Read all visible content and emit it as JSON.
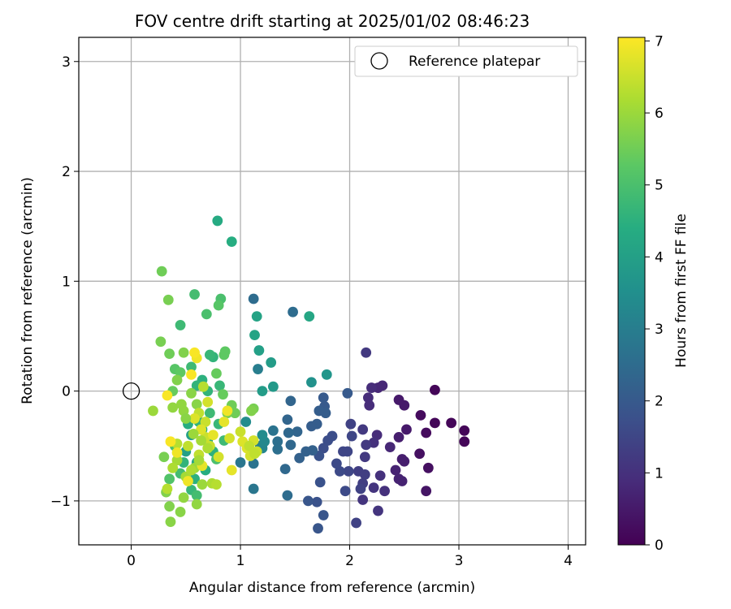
{
  "chart_data": {
    "type": "scatter",
    "title": "FOV centre drift starting at 2025/01/02 08:46:23",
    "xlabel": "Angular distance from reference (arcmin)",
    "ylabel": "Rotation from reference (arcmin)",
    "xlim": [
      -0.48,
      4.16
    ],
    "ylim": [
      -1.4,
      3.22
    ],
    "xticks": [
      0,
      1,
      2,
      3,
      4
    ],
    "xtick_labels": [
      "0",
      "1",
      "2",
      "3",
      "4"
    ],
    "yticks": [
      -1,
      0,
      1,
      2,
      3
    ],
    "ytick_labels": [
      "−1",
      "0",
      "1",
      "2",
      "3"
    ],
    "grid": true,
    "legend": {
      "position": "top-right",
      "entries": [
        {
          "label": "Reference platepar",
          "marker": "open-circle",
          "x": 0,
          "y": 0
        }
      ]
    },
    "colorbar": {
      "label": "Hours from first FF file",
      "range": [
        0,
        7.05
      ],
      "ticks": [
        0,
        1,
        2,
        3,
        4,
        5,
        6,
        7
      ],
      "tick_labels": [
        "0",
        "1",
        "2",
        "3",
        "4",
        "5",
        "6",
        "7"
      ],
      "colormap": "viridis"
    },
    "points": [
      {
        "x": 2.78,
        "y": 0.01,
        "c": 0.1
      },
      {
        "x": 2.65,
        "y": -0.22,
        "c": 0.2
      },
      {
        "x": 2.78,
        "y": -0.29,
        "c": 0.1
      },
      {
        "x": 2.93,
        "y": -0.29,
        "c": 0.1
      },
      {
        "x": 3.05,
        "y": -0.36,
        "c": 0.1
      },
      {
        "x": 3.05,
        "y": -0.46,
        "c": 0.1
      },
      {
        "x": 2.7,
        "y": -0.38,
        "c": 0.2
      },
      {
        "x": 2.64,
        "y": -0.57,
        "c": 0.3
      },
      {
        "x": 2.72,
        "y": -0.7,
        "c": 0.3
      },
      {
        "x": 2.7,
        "y": -0.91,
        "c": 0.4
      },
      {
        "x": 2.5,
        "y": -0.13,
        "c": 0.5
      },
      {
        "x": 2.45,
        "y": -0.08,
        "c": 0.5
      },
      {
        "x": 2.52,
        "y": -0.35,
        "c": 0.5
      },
      {
        "x": 2.45,
        "y": -0.42,
        "c": 0.6
      },
      {
        "x": 2.48,
        "y": -0.62,
        "c": 0.6
      },
      {
        "x": 2.5,
        "y": -0.64,
        "c": 0.6
      },
      {
        "x": 2.42,
        "y": -0.72,
        "c": 0.7
      },
      {
        "x": 2.45,
        "y": -0.8,
        "c": 0.7
      },
      {
        "x": 2.48,
        "y": -0.82,
        "c": 0.7
      },
      {
        "x": 2.37,
        "y": -0.51,
        "c": 0.8
      },
      {
        "x": 2.3,
        "y": 0.05,
        "c": 0.8
      },
      {
        "x": 2.26,
        "y": 0.03,
        "c": 0.8
      },
      {
        "x": 2.2,
        "y": 0.03,
        "c": 0.9
      },
      {
        "x": 2.17,
        "y": -0.06,
        "c": 0.9
      },
      {
        "x": 2.18,
        "y": -0.13,
        "c": 0.9
      },
      {
        "x": 2.25,
        "y": -0.4,
        "c": 0.9
      },
      {
        "x": 2.22,
        "y": -0.47,
        "c": 1.0
      },
      {
        "x": 2.28,
        "y": -0.77,
        "c": 1.0
      },
      {
        "x": 2.32,
        "y": -0.91,
        "c": 1.0
      },
      {
        "x": 2.22,
        "y": -0.88,
        "c": 1.1
      },
      {
        "x": 2.26,
        "y": -1.09,
        "c": 1.1
      },
      {
        "x": 2.12,
        "y": -0.99,
        "c": 1.1
      },
      {
        "x": 2.15,
        "y": 0.35,
        "c": 1.2
      },
      {
        "x": 2.12,
        "y": -0.35,
        "c": 1.2
      },
      {
        "x": 2.15,
        "y": -0.49,
        "c": 1.2
      },
      {
        "x": 2.14,
        "y": -0.6,
        "c": 1.2
      },
      {
        "x": 2.08,
        "y": -0.73,
        "c": 1.3
      },
      {
        "x": 2.14,
        "y": -0.76,
        "c": 1.3
      },
      {
        "x": 2.12,
        "y": -0.84,
        "c": 1.3
      },
      {
        "x": 2.1,
        "y": -0.89,
        "c": 1.4
      },
      {
        "x": 2.06,
        "y": -1.2,
        "c": 1.4
      },
      {
        "x": 2.01,
        "y": -0.3,
        "c": 1.4
      },
      {
        "x": 2.02,
        "y": -0.41,
        "c": 1.5
      },
      {
        "x": 1.98,
        "y": -0.55,
        "c": 1.5
      },
      {
        "x": 1.94,
        "y": -0.55,
        "c": 1.5
      },
      {
        "x": 1.99,
        "y": -0.73,
        "c": 1.5
      },
      {
        "x": 1.96,
        "y": -0.91,
        "c": 1.6
      },
      {
        "x": 1.91,
        "y": -0.73,
        "c": 1.6
      },
      {
        "x": 1.88,
        "y": -0.66,
        "c": 1.6
      },
      {
        "x": 1.84,
        "y": -0.41,
        "c": 1.7
      },
      {
        "x": 1.8,
        "y": -0.45,
        "c": 1.7
      },
      {
        "x": 1.76,
        "y": -0.52,
        "c": 1.7
      },
      {
        "x": 1.72,
        "y": -0.59,
        "c": 1.8
      },
      {
        "x": 1.73,
        "y": -0.83,
        "c": 1.8
      },
      {
        "x": 1.7,
        "y": -1.01,
        "c": 1.8
      },
      {
        "x": 1.76,
        "y": -1.13,
        "c": 1.9
      },
      {
        "x": 1.71,
        "y": -1.25,
        "c": 1.9
      },
      {
        "x": 1.62,
        "y": -1.0,
        "c": 1.9
      },
      {
        "x": 1.98,
        "y": -0.02,
        "c": 2.0
      },
      {
        "x": 1.76,
        "y": -0.06,
        "c": 2.0
      },
      {
        "x": 1.77,
        "y": -0.14,
        "c": 2.0
      },
      {
        "x": 1.78,
        "y": -0.2,
        "c": 2.1
      },
      {
        "x": 1.72,
        "y": -0.18,
        "c": 2.1
      },
      {
        "x": 1.7,
        "y": -0.3,
        "c": 2.1
      },
      {
        "x": 1.65,
        "y": -0.32,
        "c": 2.1
      },
      {
        "x": 1.66,
        "y": -0.54,
        "c": 2.2
      },
      {
        "x": 1.6,
        "y": -0.55,
        "c": 2.2
      },
      {
        "x": 1.54,
        "y": -0.61,
        "c": 2.2
      },
      {
        "x": 1.52,
        "y": -0.37,
        "c": 2.3
      },
      {
        "x": 1.46,
        "y": -0.09,
        "c": 2.3
      },
      {
        "x": 1.43,
        "y": -0.26,
        "c": 2.3
      },
      {
        "x": 1.44,
        "y": -0.38,
        "c": 2.4
      },
      {
        "x": 1.46,
        "y": -0.49,
        "c": 2.4
      },
      {
        "x": 1.41,
        "y": -0.71,
        "c": 2.4
      },
      {
        "x": 1.43,
        "y": -0.95,
        "c": 2.5
      },
      {
        "x": 1.48,
        "y": 0.72,
        "c": 2.5
      },
      {
        "x": 1.12,
        "y": 0.84,
        "c": 2.5
      },
      {
        "x": 1.34,
        "y": -0.46,
        "c": 2.6
      },
      {
        "x": 1.34,
        "y": -0.53,
        "c": 2.6
      },
      {
        "x": 1.3,
        "y": -0.36,
        "c": 2.7
      },
      {
        "x": 1.12,
        "y": -0.66,
        "c": 2.7
      },
      {
        "x": 1.0,
        "y": -0.65,
        "c": 2.8
      },
      {
        "x": 1.12,
        "y": -0.89,
        "c": 2.8
      },
      {
        "x": 1.18,
        "y": -0.5,
        "c": 3.0
      },
      {
        "x": 1.16,
        "y": 0.2,
        "c": 3.0
      },
      {
        "x": 1.2,
        "y": -0.52,
        "c": 3.2
      },
      {
        "x": 1.22,
        "y": -0.46,
        "c": 3.3
      },
      {
        "x": 1.05,
        "y": -0.28,
        "c": 3.4
      },
      {
        "x": 1.2,
        "y": -0.4,
        "c": 3.4
      },
      {
        "x": 1.65,
        "y": 0.08,
        "c": 3.6
      },
      {
        "x": 1.79,
        "y": 0.15,
        "c": 3.7
      },
      {
        "x": 1.3,
        "y": 0.04,
        "c": 3.8
      },
      {
        "x": 1.2,
        "y": 0.0,
        "c": 3.9
      },
      {
        "x": 1.28,
        "y": 0.26,
        "c": 3.9
      },
      {
        "x": 1.17,
        "y": 0.37,
        "c": 4.0
      },
      {
        "x": 1.13,
        "y": 0.51,
        "c": 4.1
      },
      {
        "x": 1.15,
        "y": 0.68,
        "c": 4.1
      },
      {
        "x": 1.63,
        "y": 0.68,
        "c": 4.2
      },
      {
        "x": 0.79,
        "y": 1.55,
        "c": 4.3
      },
      {
        "x": 0.92,
        "y": 1.36,
        "c": 4.4
      },
      {
        "x": 0.55,
        "y": -0.4,
        "c": 4.0
      },
      {
        "x": 0.5,
        "y": -0.55,
        "c": 4.0
      },
      {
        "x": 0.6,
        "y": -0.65,
        "c": 4.2
      },
      {
        "x": 0.65,
        "y": -0.35,
        "c": 4.3
      },
      {
        "x": 0.7,
        "y": -0.45,
        "c": 4.3
      },
      {
        "x": 0.52,
        "y": -0.3,
        "c": 4.4
      },
      {
        "x": 0.68,
        "y": -0.72,
        "c": 4.4
      },
      {
        "x": 0.58,
        "y": -0.8,
        "c": 4.5
      },
      {
        "x": 0.75,
        "y": -0.55,
        "c": 4.5
      },
      {
        "x": 0.62,
        "y": -0.28,
        "c": 4.6
      },
      {
        "x": 0.48,
        "y": -0.65,
        "c": 4.6
      },
      {
        "x": 0.55,
        "y": -0.9,
        "c": 4.7
      },
      {
        "x": 0.8,
        "y": -0.3,
        "c": 4.7
      },
      {
        "x": 0.72,
        "y": -0.2,
        "c": 4.8
      },
      {
        "x": 0.85,
        "y": -0.45,
        "c": 4.8
      },
      {
        "x": 0.45,
        "y": -0.75,
        "c": 4.9
      },
      {
        "x": 0.6,
        "y": -0.95,
        "c": 4.9
      },
      {
        "x": 0.4,
        "y": -0.5,
        "c": 5.0
      },
      {
        "x": 0.78,
        "y": -0.62,
        "c": 5.0
      },
      {
        "x": 0.35,
        "y": -0.8,
        "c": 5.1
      },
      {
        "x": 0.65,
        "y": 0.1,
        "c": 4.5
      },
      {
        "x": 0.7,
        "y": 0.0,
        "c": 4.6
      },
      {
        "x": 0.6,
        "y": 0.05,
        "c": 4.6
      },
      {
        "x": 0.75,
        "y": 0.31,
        "c": 4.6
      },
      {
        "x": 0.72,
        "y": 0.33,
        "c": 4.7
      },
      {
        "x": 0.81,
        "y": 0.05,
        "c": 4.7
      },
      {
        "x": 0.55,
        "y": 0.22,
        "c": 4.8
      },
      {
        "x": 0.45,
        "y": 0.6,
        "c": 4.8
      },
      {
        "x": 0.58,
        "y": 0.88,
        "c": 4.9
      },
      {
        "x": 0.69,
        "y": 0.7,
        "c": 5.0
      },
      {
        "x": 0.82,
        "y": 0.84,
        "c": 5.0
      },
      {
        "x": 0.8,
        "y": 0.78,
        "c": 5.2
      },
      {
        "x": 0.85,
        "y": 0.33,
        "c": 5.3
      },
      {
        "x": 0.86,
        "y": 0.36,
        "c": 5.3
      },
      {
        "x": 0.78,
        "y": 0.16,
        "c": 5.4
      },
      {
        "x": 0.84,
        "y": -0.03,
        "c": 5.4
      },
      {
        "x": 0.92,
        "y": -0.13,
        "c": 5.5
      },
      {
        "x": 0.95,
        "y": -0.2,
        "c": 5.5
      },
      {
        "x": 0.88,
        "y": -0.2,
        "c": 5.6
      },
      {
        "x": 1.12,
        "y": -0.16,
        "c": 5.6
      },
      {
        "x": 1.1,
        "y": -0.18,
        "c": 5.7
      },
      {
        "x": 0.4,
        "y": 0.2,
        "c": 5.2
      },
      {
        "x": 0.45,
        "y": 0.17,
        "c": 5.3
      },
      {
        "x": 0.38,
        "y": 0.0,
        "c": 5.4
      },
      {
        "x": 0.35,
        "y": 0.34,
        "c": 5.5
      },
      {
        "x": 0.28,
        "y": 1.09,
        "c": 5.5
      },
      {
        "x": 0.34,
        "y": 0.83,
        "c": 5.6
      },
      {
        "x": 0.27,
        "y": 0.45,
        "c": 5.6
      },
      {
        "x": 0.48,
        "y": 0.35,
        "c": 5.7
      },
      {
        "x": 0.42,
        "y": 0.1,
        "c": 5.7
      },
      {
        "x": 0.55,
        "y": -0.02,
        "c": 5.8
      },
      {
        "x": 0.6,
        "y": -0.12,
        "c": 5.8
      },
      {
        "x": 0.48,
        "y": -0.18,
        "c": 5.9
      },
      {
        "x": 0.38,
        "y": -0.15,
        "c": 5.9
      },
      {
        "x": 0.2,
        "y": -0.18,
        "c": 6.0
      },
      {
        "x": 0.3,
        "y": -0.6,
        "c": 5.6
      },
      {
        "x": 0.32,
        "y": -0.92,
        "c": 5.7
      },
      {
        "x": 0.35,
        "y": -1.05,
        "c": 5.7
      },
      {
        "x": 0.36,
        "y": -1.19,
        "c": 5.8
      },
      {
        "x": 0.45,
        "y": -1.1,
        "c": 5.8
      },
      {
        "x": 0.48,
        "y": -0.97,
        "c": 5.9
      },
      {
        "x": 0.6,
        "y": -1.03,
        "c": 5.9
      },
      {
        "x": 0.65,
        "y": -0.85,
        "c": 6.0
      },
      {
        "x": 0.58,
        "y": -0.7,
        "c": 6.0
      },
      {
        "x": 0.42,
        "y": -0.63,
        "c": 6.1
      },
      {
        "x": 0.5,
        "y": -0.78,
        "c": 6.1
      },
      {
        "x": 0.55,
        "y": -0.72,
        "c": 6.2
      },
      {
        "x": 0.38,
        "y": -0.7,
        "c": 6.2
      },
      {
        "x": 0.33,
        "y": -0.89,
        "c": 6.3
      },
      {
        "x": 0.42,
        "y": -0.48,
        "c": 6.3
      },
      {
        "x": 0.52,
        "y": -0.5,
        "c": 6.4
      },
      {
        "x": 0.62,
        "y": -0.58,
        "c": 6.4
      },
      {
        "x": 0.68,
        "y": -0.42,
        "c": 6.5
      },
      {
        "x": 0.72,
        "y": -0.5,
        "c": 6.5
      },
      {
        "x": 0.8,
        "y": -0.6,
        "c": 6.6
      },
      {
        "x": 0.9,
        "y": -0.43,
        "c": 6.6
      },
      {
        "x": 0.74,
        "y": -0.84,
        "c": 6.2
      },
      {
        "x": 0.78,
        "y": -0.85,
        "c": 6.3
      },
      {
        "x": 0.62,
        "y": -0.2,
        "c": 6.4
      },
      {
        "x": 0.68,
        "y": -0.28,
        "c": 6.5
      },
      {
        "x": 0.7,
        "y": -0.1,
        "c": 6.6
      },
      {
        "x": 0.58,
        "y": -0.25,
        "c": 6.7
      },
      {
        "x": 0.64,
        "y": -0.35,
        "c": 6.7
      },
      {
        "x": 0.75,
        "y": -0.4,
        "c": 6.8
      },
      {
        "x": 0.85,
        "y": -0.28,
        "c": 6.8
      },
      {
        "x": 0.88,
        "y": -0.18,
        "c": 6.9
      },
      {
        "x": 0.6,
        "y": 0.3,
        "c": 6.9
      },
      {
        "x": 0.58,
        "y": 0.35,
        "c": 7.0
      },
      {
        "x": 0.55,
        "y": 0.15,
        "c": 7.0
      },
      {
        "x": 0.33,
        "y": -0.04,
        "c": 7.0
      },
      {
        "x": 0.36,
        "y": -0.46,
        "c": 7.0
      },
      {
        "x": 0.42,
        "y": -0.56,
        "c": 6.9
      },
      {
        "x": 0.52,
        "y": -0.82,
        "c": 6.9
      },
      {
        "x": 0.65,
        "y": -0.68,
        "c": 6.8
      },
      {
        "x": 0.92,
        "y": -0.72,
        "c": 6.8
      },
      {
        "x": 1.02,
        "y": -0.46,
        "c": 6.7
      },
      {
        "x": 1.06,
        "y": -0.52,
        "c": 6.7
      },
      {
        "x": 1.09,
        "y": -0.59,
        "c": 6.6
      },
      {
        "x": 1.12,
        "y": -0.45,
        "c": 6.6
      },
      {
        "x": 1.15,
        "y": -0.55,
        "c": 6.5
      },
      {
        "x": 1.0,
        "y": -0.37,
        "c": 6.5
      },
      {
        "x": 1.08,
        "y": -0.5,
        "c": 6.4
      },
      {
        "x": 1.13,
        "y": -0.57,
        "c": 6.4
      },
      {
        "x": 0.66,
        "y": 0.04,
        "c": 6.3
      },
      {
        "x": 0.7,
        "y": -0.52,
        "c": 6.2
      },
      {
        "x": 0.64,
        "y": -0.45,
        "c": 6.1
      },
      {
        "x": 0.62,
        "y": -0.63,
        "c": 6.1
      },
      {
        "x": 0.57,
        "y": -0.39,
        "c": 6.0
      },
      {
        "x": 0.46,
        "y": -0.12,
        "c": 5.9
      },
      {
        "x": 0.5,
        "y": -0.25,
        "c": 5.8
      }
    ]
  }
}
